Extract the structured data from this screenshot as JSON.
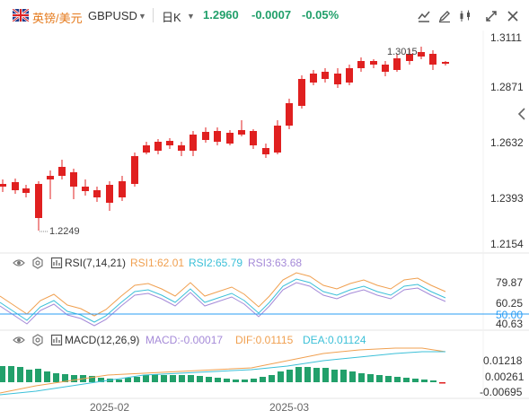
{
  "header": {
    "symbol_name": "英镑/美元",
    "symbol_code": "GBPUSD",
    "period": "日K",
    "last_price": "1.2960",
    "change": "-0.0007",
    "change_pct": "-0.05%"
  },
  "price_axis": [
    "1.3111",
    "1.2871",
    "1.2632",
    "1.2393",
    "1.2154"
  ],
  "annotations": {
    "high_label": "1.3015",
    "low_label": "1.2249"
  },
  "rsi": {
    "title": "RSI(7,14,21)",
    "rsi1": "RSI1:62.01",
    "rsi2": "RSI2:65.79",
    "rsi3": "RSI3:63.68",
    "axis": [
      "79.87",
      "60.25",
      "50.00",
      "40.63"
    ]
  },
  "macd": {
    "title": "MACD(12,26,9)",
    "macd": "MACD:-0.00017",
    "dif": "DIF:0.01115",
    "dea": "DEA:0.01124",
    "axis": [
      "0.01218",
      "0.00261",
      "-0.00695"
    ]
  },
  "time_axis": [
    "2025-02",
    "2025-03"
  ],
  "colors": {
    "up": "#22a06b",
    "down": "#e02020",
    "symbol": "#e57a1c",
    "rsi1": "#f0a050",
    "rsi2": "#3cc0d8",
    "rsi3": "#a58ad8",
    "dif": "#f0a050",
    "dea": "#3cc0d8",
    "baseline": "#2a9df4"
  },
  "icons": [
    "flag-uk-us-icon",
    "compare-icon",
    "draw-icon",
    "indicator-icon",
    "fullscreen-icon",
    "close-icon",
    "eye-icon",
    "settings-icon",
    "collapse-arrow-icon"
  ]
}
